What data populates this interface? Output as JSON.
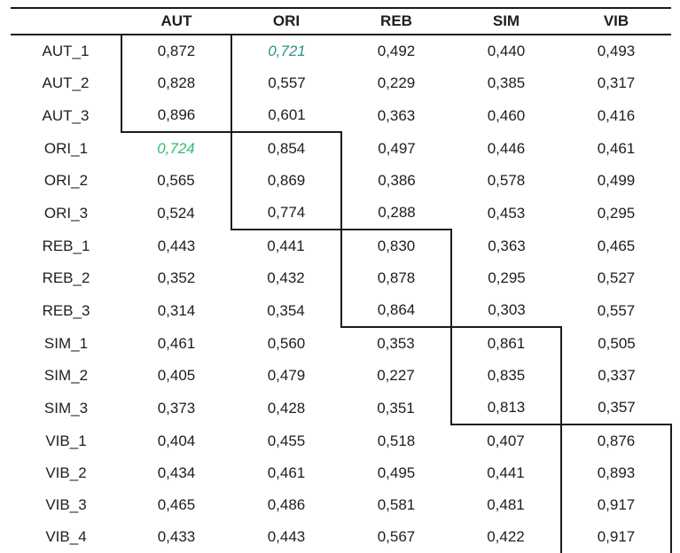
{
  "page": {
    "background": "#ffffff"
  },
  "colors": {
    "rule": "#1b1b1b",
    "text": "#1e1e1e",
    "teal_highlight": "#2a9387",
    "green_highlight": "#2ebf6f"
  },
  "table": {
    "corner_label": "",
    "columns": [
      "AUT",
      "ORI",
      "REB",
      "SIM",
      "VIB"
    ],
    "rows": [
      {
        "label": "AUT_1",
        "values": [
          "0,872",
          "0,721",
          "0,492",
          "0,440",
          "0,493"
        ]
      },
      {
        "label": "AUT_2",
        "values": [
          "0,828",
          "0,557",
          "0,229",
          "0,385",
          "0,317"
        ]
      },
      {
        "label": "AUT_3",
        "values": [
          "0,896",
          "0,601",
          "0,363",
          "0,460",
          "0,416"
        ]
      },
      {
        "label": "ORI_1",
        "values": [
          "0,724",
          "0,854",
          "0,497",
          "0,446",
          "0,461"
        ]
      },
      {
        "label": "ORI_2",
        "values": [
          "0,565",
          "0,869",
          "0,386",
          "0,578",
          "0,499"
        ]
      },
      {
        "label": "ORI_3",
        "values": [
          "0,524",
          "0,774",
          "0,288",
          "0,453",
          "0,295"
        ]
      },
      {
        "label": "REB_1",
        "values": [
          "0,443",
          "0,441",
          "0,830",
          "0,363",
          "0,465"
        ]
      },
      {
        "label": "REB_2",
        "values": [
          "0,352",
          "0,432",
          "0,878",
          "0,295",
          "0,527"
        ]
      },
      {
        "label": "REB_3",
        "values": [
          "0,314",
          "0,354",
          "0,864",
          "0,303",
          "0,557"
        ]
      },
      {
        "label": "SIM_1",
        "values": [
          "0,461",
          "0,560",
          "0,353",
          "0,861",
          "0,505"
        ]
      },
      {
        "label": "SIM_2",
        "values": [
          "0,405",
          "0,479",
          "0,227",
          "0,835",
          "0,337"
        ]
      },
      {
        "label": "SIM_3",
        "values": [
          "0,373",
          "0,428",
          "0,351",
          "0,813",
          "0,357"
        ]
      },
      {
        "label": "VIB_1",
        "values": [
          "0,404",
          "0,455",
          "0,518",
          "0,407",
          "0,876"
        ]
      },
      {
        "label": "VIB_2",
        "values": [
          "0,434",
          "0,461",
          "0,495",
          "0,441",
          "0,893"
        ]
      },
      {
        "label": "VIB_3",
        "values": [
          "0,465",
          "0,486",
          "0,581",
          "0,481",
          "0,917"
        ]
      },
      {
        "label": "VIB_4",
        "values": [
          "0,433",
          "0,443",
          "0,567",
          "0,422",
          "0,917"
        ]
      }
    ],
    "diagonal_blocks": [
      {
        "construct": "AUT",
        "col": 0,
        "row_start": 0,
        "row_end": 2
      },
      {
        "construct": "ORI",
        "col": 1,
        "row_start": 3,
        "row_end": 5
      },
      {
        "construct": "REB",
        "col": 2,
        "row_start": 6,
        "row_end": 8
      },
      {
        "construct": "SIM",
        "col": 3,
        "row_start": 9,
        "row_end": 11
      },
      {
        "construct": "VIB",
        "col": 4,
        "row_start": 12,
        "row_end": 15
      }
    ],
    "highlighted_cells": [
      {
        "row": 0,
        "col": 1,
        "value": "0,721",
        "color": "#2a9387",
        "style": "italic"
      },
      {
        "row": 3,
        "col": 0,
        "value": "0,724",
        "color": "#2ebf6f",
        "style": "italic"
      }
    ]
  }
}
